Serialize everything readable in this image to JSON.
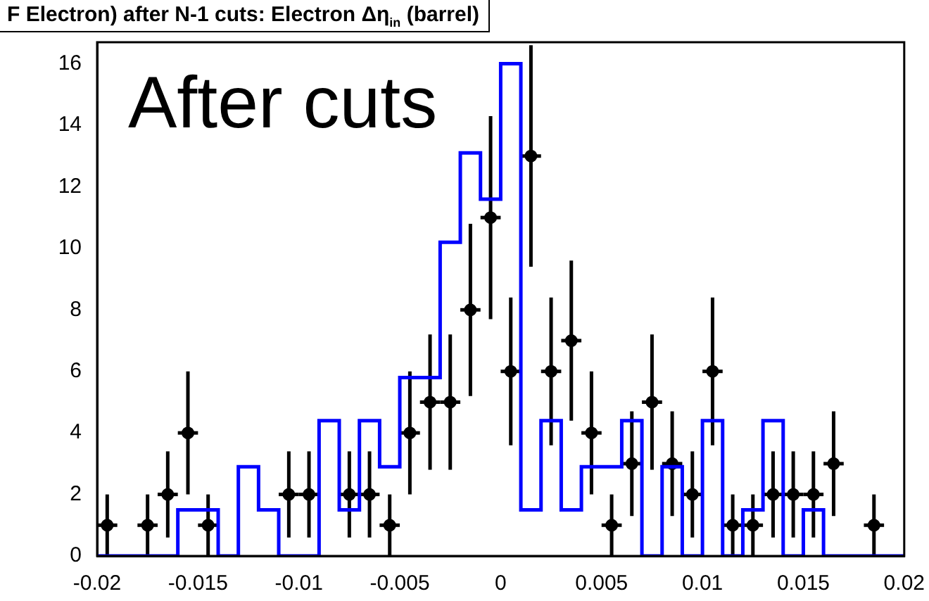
{
  "chart_data": {
    "type": "scatter",
    "title": "F Electron) after N-1 cuts: Electron Δη$_{in}$ (barrel)",
    "annotations": [
      "After cuts"
    ],
    "xlim": [
      -0.02,
      0.02
    ],
    "xticks": [
      -0.02,
      -0.015,
      -0.01,
      -0.005,
      0,
      0.005,
      0.01,
      0.015,
      0.02
    ],
    "ylim": [
      0,
      16.7
    ],
    "yticks": [
      0,
      2,
      4,
      6,
      8,
      10,
      12,
      14,
      16
    ],
    "grid": false,
    "legend": false,
    "marker": "circle",
    "series": [
      {
        "type": "step",
        "marker": "none",
        "color": "#0000ff",
        "x": [
          -0.02,
          -0.016,
          -0.014,
          -0.013,
          -0.012,
          -0.011,
          -0.009,
          -0.008,
          -0.007,
          -0.006,
          -0.005,
          -0.003,
          -0.002,
          -0.001,
          0,
          0.001,
          0.002,
          0.003,
          0.004,
          0.006,
          0.007,
          0.008,
          0.009,
          0.01,
          0.011,
          0.012,
          0.013,
          0.014,
          0.015,
          0.016,
          0.02
        ],
        "values": [
          0,
          1.5,
          0,
          2.9,
          1.5,
          0,
          4.4,
          1.5,
          4.4,
          2.9,
          5.8,
          10.2,
          13.1,
          11.6,
          16,
          1.5,
          4.4,
          1.5,
          2.9,
          4.4,
          0,
          2.9,
          0,
          4.4,
          0,
          1.5,
          4.4,
          0,
          1.5,
          0,
          0
        ]
      },
      {
        "color": "#000000",
        "x": [
          -0.0195,
          -0.0175,
          -0.0165,
          -0.0155,
          -0.0145,
          -0.0105,
          -0.0095,
          -0.0075,
          -0.0065,
          -0.0055,
          -0.0045,
          -0.0035,
          -0.0025,
          -0.0015,
          -0.0005,
          0.0005,
          0.0015,
          0.0025,
          0.0035,
          0.0045,
          0.0055,
          0.0065,
          0.0075,
          0.0085,
          0.0095,
          0.0105,
          0.0115,
          0.0125,
          0.0135,
          0.0145,
          0.0155,
          0.0165,
          0.0185
        ],
        "values": [
          1,
          1,
          2,
          4,
          1,
          2,
          2,
          2,
          2,
          1,
          4,
          5,
          5,
          8,
          11,
          6,
          13,
          6,
          7,
          4,
          1,
          3,
          5,
          3,
          2,
          6,
          1,
          1,
          2,
          2,
          2,
          3,
          1
        ],
        "errors": [
          1,
          1,
          1.4,
          2,
          1,
          1.4,
          1.4,
          1.4,
          1.4,
          1,
          2,
          2.2,
          2.2,
          2.8,
          3.3,
          2.4,
          3.6,
          2.4,
          2.6,
          2,
          1,
          1.7,
          2.2,
          1.7,
          1.4,
          2.4,
          1,
          1,
          1.4,
          1.4,
          1.4,
          1.7,
          1
        ],
        "xerrors": [
          0.0005,
          0.0005,
          0.0005,
          0.0005,
          0.0005,
          0.0005,
          0.0005,
          0.0005,
          0.0005,
          0.0005,
          0.0005,
          0.0005,
          0.0005,
          0.0005,
          0.0005,
          0.0005,
          0.0005,
          0.0005,
          0.0005,
          0.0005,
          0.0005,
          0.0005,
          0.0005,
          0.0005,
          0.0005,
          0.0005,
          0.0005,
          0.0005,
          0.0005,
          0.0005,
          0.0005,
          0.0005,
          0.0005
        ]
      }
    ]
  }
}
